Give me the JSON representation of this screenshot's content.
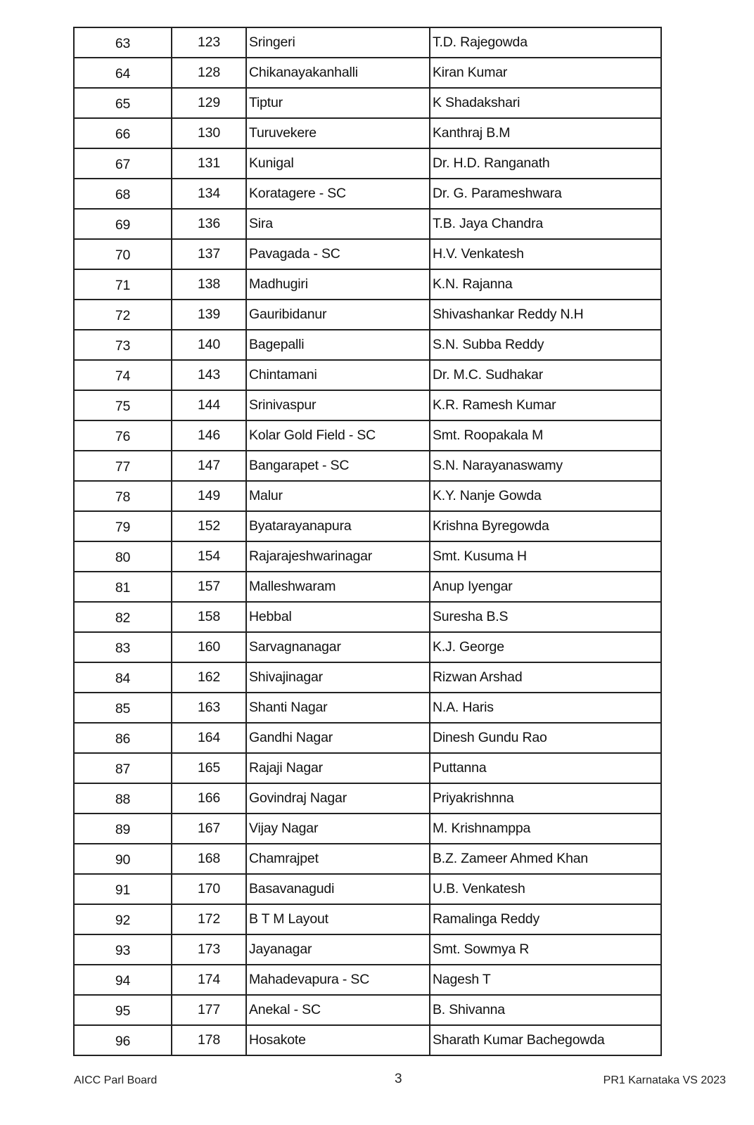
{
  "rows": [
    [
      "63",
      "123",
      "Sringeri",
      "T.D. Rajegowda"
    ],
    [
      "64",
      "128",
      "Chikanayakanhalli",
      "Kiran Kumar"
    ],
    [
      "65",
      "129",
      "Tiptur",
      "K Shadakshari"
    ],
    [
      "66",
      "130",
      "Turuvekere",
      "Kanthraj B.M"
    ],
    [
      "67",
      "131",
      "Kunigal",
      "Dr. H.D. Ranganath"
    ],
    [
      "68",
      "134",
      "Koratagere - SC",
      "Dr. G. Parameshwara"
    ],
    [
      "69",
      "136",
      "Sira",
      "T.B. Jaya Chandra"
    ],
    [
      "70",
      "137",
      "Pavagada - SC",
      "H.V. Venkatesh"
    ],
    [
      "71",
      "138",
      "Madhugiri",
      "K.N. Rajanna"
    ],
    [
      "72",
      "139",
      "Gauribidanur",
      "Shivashankar Reddy N.H"
    ],
    [
      "73",
      "140",
      "Bagepalli",
      "S.N. Subba Reddy"
    ],
    [
      "74",
      "143",
      "Chintamani",
      "Dr. M.C. Sudhakar"
    ],
    [
      "75",
      "144",
      "Srinivaspur",
      "K.R. Ramesh Kumar"
    ],
    [
      "76",
      "146",
      "Kolar Gold Field - SC",
      "Smt. Roopakala M"
    ],
    [
      "77",
      "147",
      "Bangarapet - SC",
      "S.N. Narayanaswamy"
    ],
    [
      "78",
      "149",
      "Malur",
      "K.Y. Nanje Gowda"
    ],
    [
      "79",
      "152",
      "Byatarayanapura",
      "Krishna Byregowda"
    ],
    [
      "80",
      "154",
      "Rajarajeshwarinagar",
      "Smt. Kusuma H"
    ],
    [
      "81",
      "157",
      "Malleshwaram",
      "Anup Iyengar"
    ],
    [
      "82",
      "158",
      "Hebbal",
      "Suresha B.S"
    ],
    [
      "83",
      "160",
      "Sarvagnanagar",
      "K.J. George"
    ],
    [
      "84",
      "162",
      "Shivajinagar",
      "Rizwan Arshad"
    ],
    [
      "85",
      "163",
      "Shanti Nagar",
      "N.A. Haris"
    ],
    [
      "86",
      "164",
      "Gandhi Nagar",
      "Dinesh Gundu Rao"
    ],
    [
      "87",
      "165",
      "Rajaji Nagar",
      "Puttanna"
    ],
    [
      "88",
      "166",
      "Govindraj Nagar",
      "Priyakrishnna"
    ],
    [
      "89",
      "167",
      "Vijay Nagar",
      "M. Krishnamppa"
    ],
    [
      "90",
      "168",
      "Chamrajpet",
      "B.Z. Zameer Ahmed Khan"
    ],
    [
      "91",
      "170",
      "Basavanagudi",
      "U.B. Venkatesh"
    ],
    [
      "92",
      "172",
      "B T M Layout",
      "Ramalinga Reddy"
    ],
    [
      "93",
      "173",
      "Jayanagar",
      "Smt. Sowmya R"
    ],
    [
      "94",
      "174",
      "Mahadevapura - SC",
      "Nagesh T"
    ],
    [
      "95",
      "177",
      "Anekal - SC",
      "B. Shivanna"
    ],
    [
      "96",
      "178",
      "Hosakote",
      "Sharath Kumar Bachegowda"
    ]
  ],
  "footer": {
    "left": "AICC Parl Board",
    "page": "3",
    "right": "PR1 Karnataka VS 2023"
  }
}
